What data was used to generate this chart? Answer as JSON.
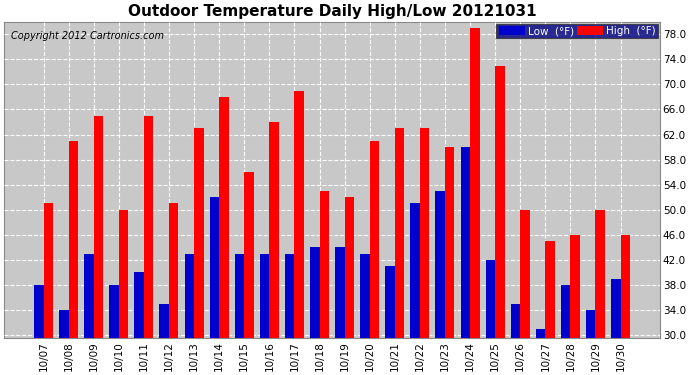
{
  "title": "Outdoor Temperature Daily High/Low 20121031",
  "copyright": "Copyright 2012 Cartronics.com",
  "categories": [
    "10/07",
    "10/08",
    "10/09",
    "10/10",
    "10/11",
    "10/12",
    "10/13",
    "10/14",
    "10/15",
    "10/16",
    "10/17",
    "10/18",
    "10/19",
    "10/20",
    "10/21",
    "10/22",
    "10/23",
    "10/24",
    "10/25",
    "10/26",
    "10/27",
    "10/28",
    "10/29",
    "10/30"
  ],
  "high": [
    51,
    61,
    65,
    50,
    65,
    51,
    63,
    68,
    56,
    64,
    69,
    53,
    52,
    61,
    63,
    63,
    60,
    79,
    73,
    50,
    45,
    46,
    50,
    46
  ],
  "low": [
    38,
    34,
    43,
    38,
    40,
    35,
    43,
    52,
    43,
    43,
    43,
    44,
    44,
    43,
    41,
    51,
    53,
    60,
    42,
    35,
    31,
    38,
    34,
    39
  ],
  "ylim": [
    29.5,
    80
  ],
  "yticks": [
    30.0,
    34.0,
    38.0,
    42.0,
    46.0,
    50.0,
    54.0,
    58.0,
    62.0,
    66.0,
    70.0,
    74.0,
    78.0
  ],
  "bar_width": 0.38,
  "high_color": "#ff0000",
  "low_color": "#0000cc",
  "bg_color": "#ffffff",
  "plot_bg_color": "#c8c8c8",
  "grid_color": "#ffffff",
  "title_fontsize": 11,
  "copyright_fontsize": 7,
  "tick_fontsize": 7.5,
  "legend_low_label": "Low  (°F)",
  "legend_high_label": "High  (°F)"
}
